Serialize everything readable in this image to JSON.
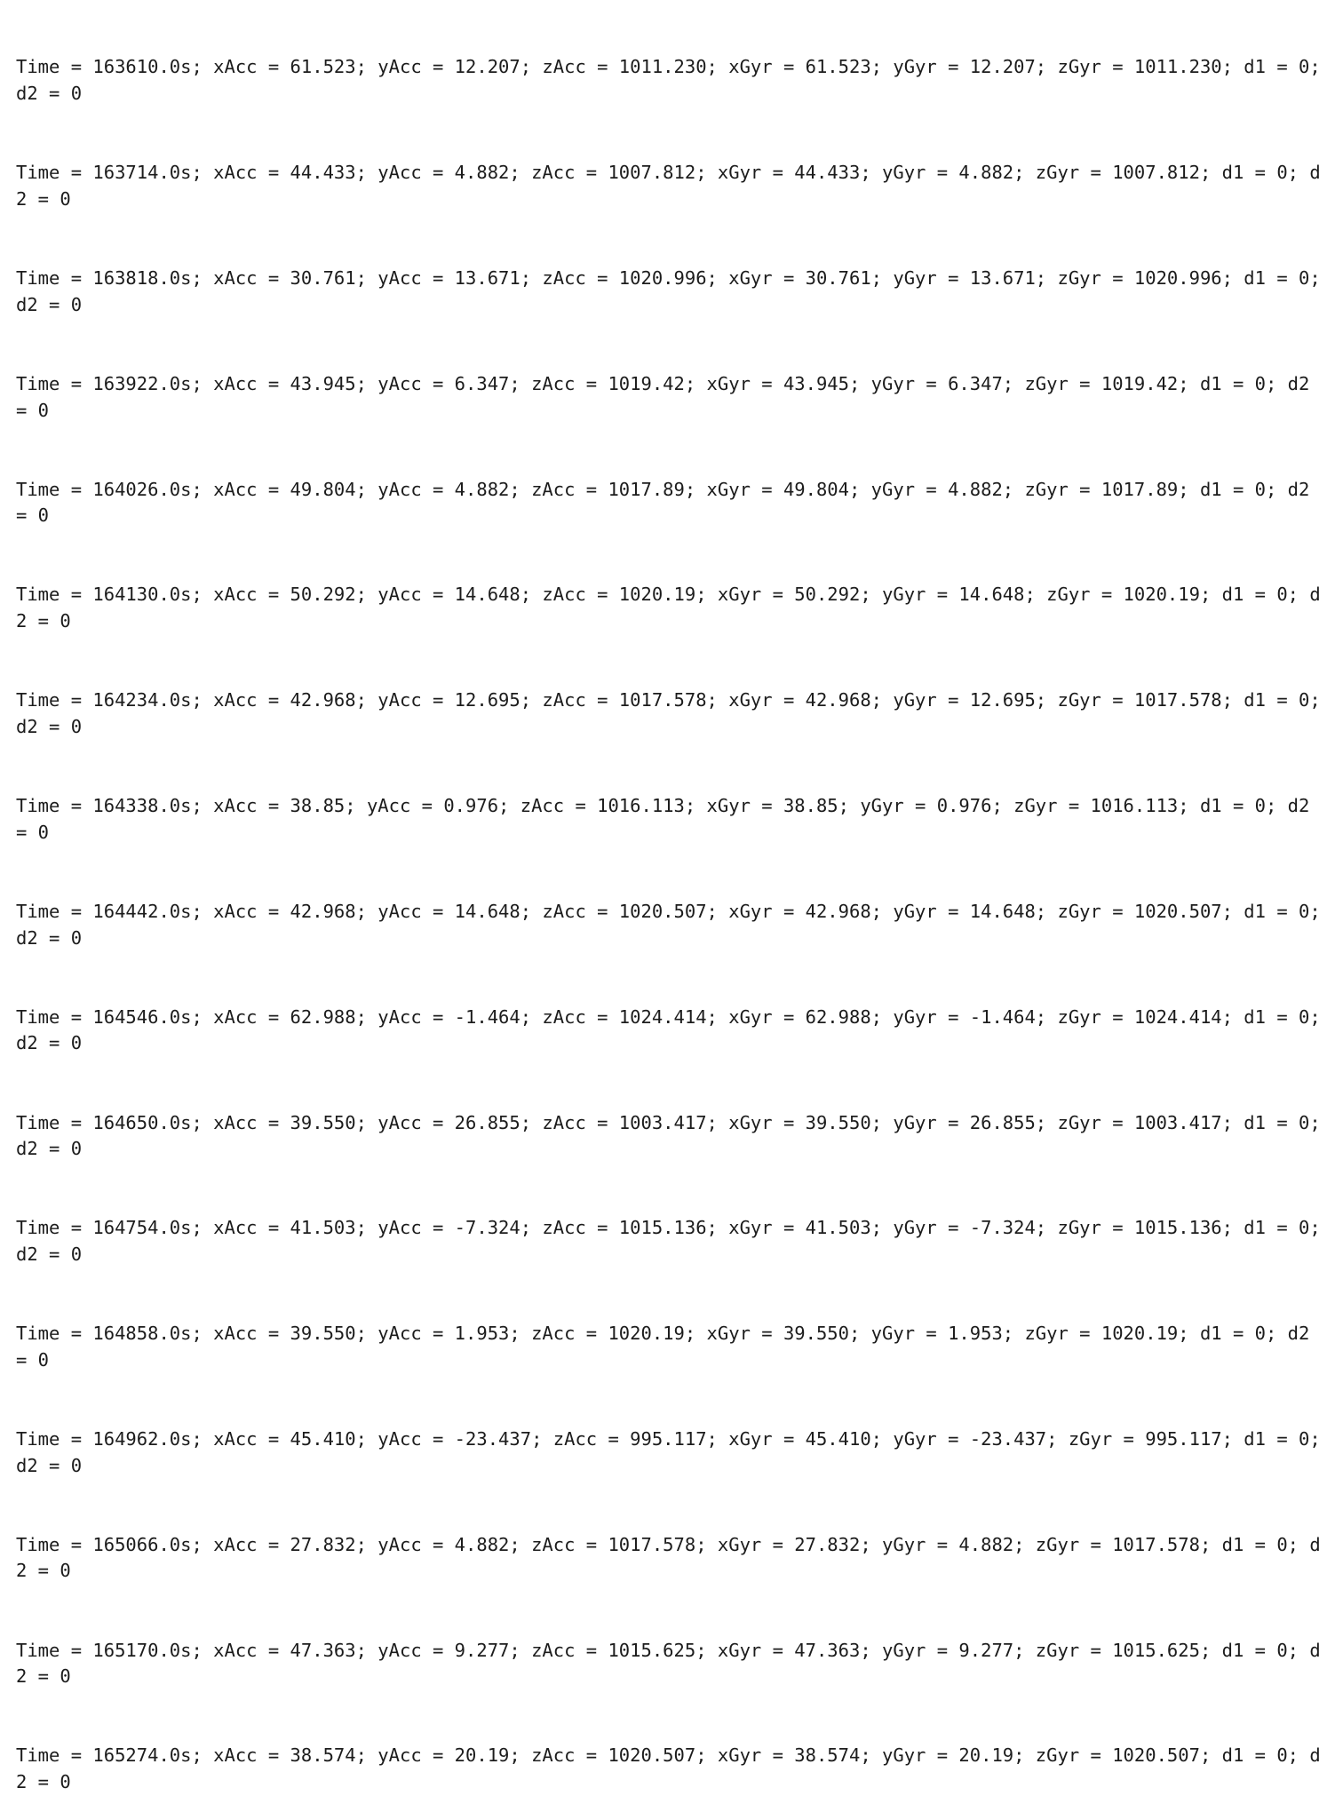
{
  "log": {
    "lines": [
      "Time = 163610.0s; xAcc = 61.523; yAcc = 12.207; zAcc = 1011.230; xGyr = 61.523; yGyr = 12.207; zGyr = 1011.230; d1 = 0; d2 = 0",
      "Time = 163714.0s; xAcc = 44.433; yAcc = 4.882; zAcc = 1007.812; xGyr = 44.433; yGyr = 4.882; zGyr = 1007.812; d1 = 0; d2 = 0",
      "Time = 163818.0s; xAcc = 30.761; yAcc = 13.671; zAcc = 1020.996; xGyr = 30.761; yGyr = 13.671; zGyr = 1020.996; d1 = 0; d2 = 0",
      "Time = 163922.0s; xAcc = 43.945; yAcc = 6.347; zAcc = 1019.42; xGyr = 43.945; yGyr = 6.347; zGyr = 1019.42; d1 = 0; d2 = 0",
      "Time = 164026.0s; xAcc = 49.804; yAcc = 4.882; zAcc = 1017.89; xGyr = 49.804; yGyr = 4.882; zGyr = 1017.89; d1 = 0; d2 = 0",
      "Time = 164130.0s; xAcc = 50.292; yAcc = 14.648; zAcc = 1020.19; xGyr = 50.292; yGyr = 14.648; zGyr = 1020.19; d1 = 0; d2 = 0",
      "Time = 164234.0s; xAcc = 42.968; yAcc = 12.695; zAcc = 1017.578; xGyr = 42.968; yGyr = 12.695; zGyr = 1017.578; d1 = 0; d2 = 0",
      "Time = 164338.0s; xAcc = 38.85; yAcc = 0.976; zAcc = 1016.113; xGyr = 38.85; yGyr = 0.976; zGyr = 1016.113; d1 = 0; d2 = 0",
      "Time = 164442.0s; xAcc = 42.968; yAcc = 14.648; zAcc = 1020.507; xGyr = 42.968; yGyr = 14.648; zGyr = 1020.507; d1 = 0; d2 = 0",
      "Time = 164546.0s; xAcc = 62.988; yAcc = -1.464; zAcc = 1024.414; xGyr = 62.988; yGyr = -1.464; zGyr = 1024.414; d1 = 0; d2 = 0",
      "Time = 164650.0s; xAcc = 39.550; yAcc = 26.855; zAcc = 1003.417; xGyr = 39.550; yGyr = 26.855; zGyr = 1003.417; d1 = 0; d2 = 0",
      "Time = 164754.0s; xAcc = 41.503; yAcc = -7.324; zAcc = 1015.136; xGyr = 41.503; yGyr = -7.324; zGyr = 1015.136; d1 = 0; d2 = 0",
      "Time = 164858.0s; xAcc = 39.550; yAcc = 1.953; zAcc = 1020.19; xGyr = 39.550; yGyr = 1.953; zGyr = 1020.19; d1 = 0; d2 = 0",
      "Time = 164962.0s; xAcc = 45.410; yAcc = -23.437; zAcc = 995.117; xGyr = 45.410; yGyr = -23.437; zGyr = 995.117; d1 = 0; d2 = 0",
      "Time = 165066.0s; xAcc = 27.832; yAcc = 4.882; zAcc = 1017.578; xGyr = 27.832; yGyr = 4.882; zGyr = 1017.578; d1 = 0; d2 = 0",
      "Time = 165170.0s; xAcc = 47.363; yAcc = 9.277; zAcc = 1015.625; xGyr = 47.363; yGyr = 9.277; zGyr = 1015.625; d1 = 0; d2 = 0",
      "Time = 165274.0s; xAcc = 38.574; yAcc = 20.19; zAcc = 1020.507; xGyr = 38.574; yGyr = 20.19; zGyr = 1020.507; d1 = 0; d2 = 0"
    ]
  }
}
